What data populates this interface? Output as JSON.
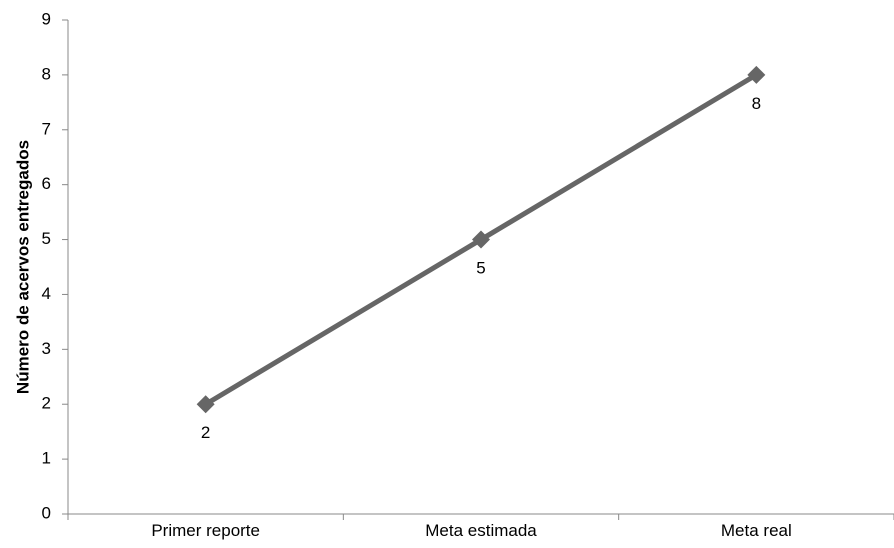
{
  "chart_data": {
    "type": "line",
    "categories": [
      "Primer reporte",
      "Meta estimada",
      "Meta real"
    ],
    "series": [
      {
        "values": [
          2,
          5,
          8
        ]
      }
    ],
    "data_labels": [
      "2",
      "5",
      "8"
    ],
    "title": "",
    "xlabel": "",
    "ylabel": "Número de acervos entregados",
    "ylim": [
      0,
      9
    ],
    "yticks": [
      0,
      1,
      2,
      3,
      4,
      5,
      6,
      7,
      8,
      9
    ],
    "grid": false,
    "legend": "none",
    "marker": "diamond",
    "line_color": "#666666",
    "axis_color": "#888888"
  }
}
